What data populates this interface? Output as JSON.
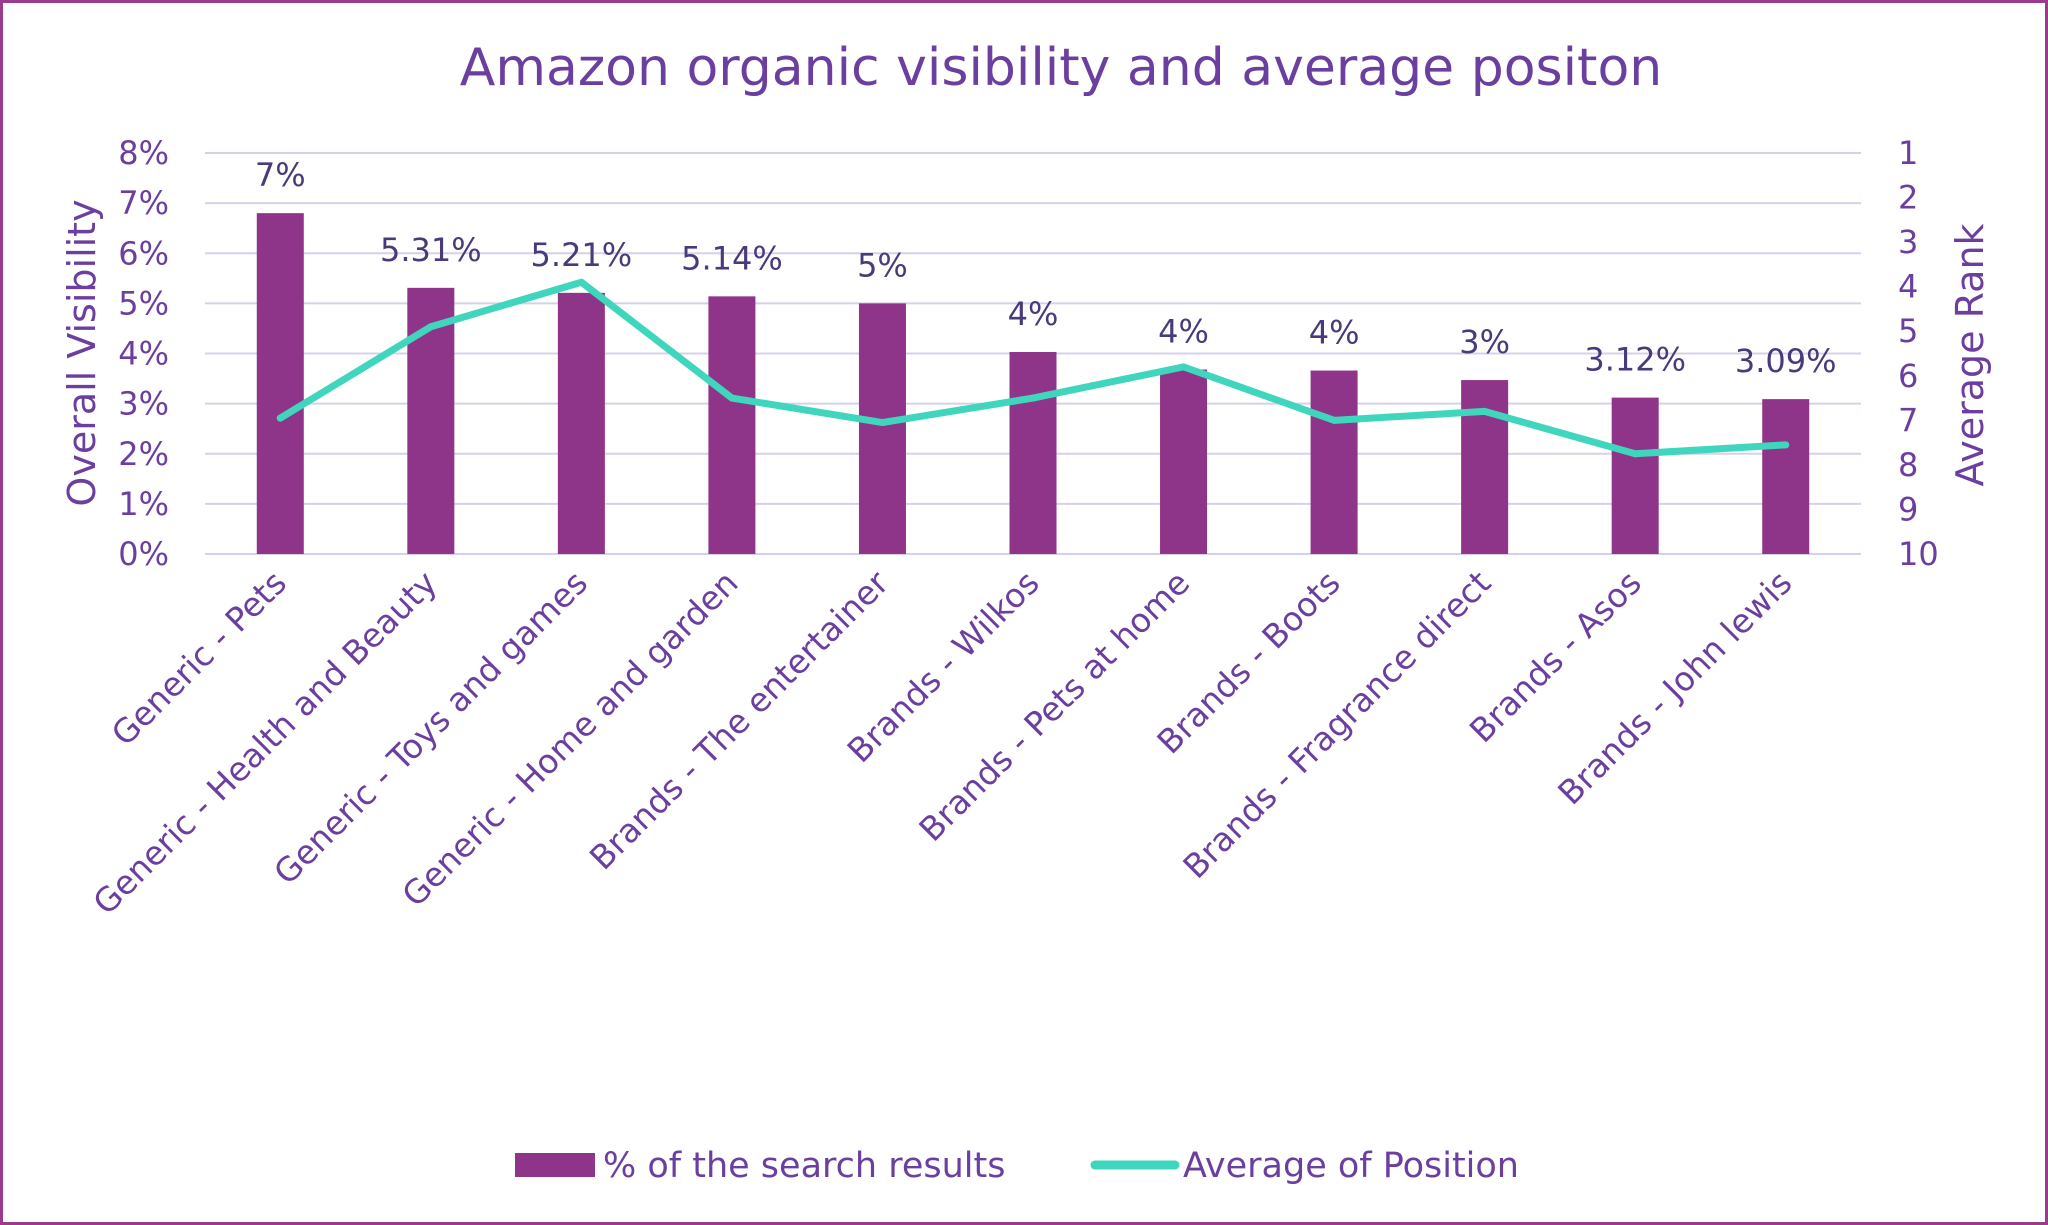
{
  "chart_data": {
    "type": "bar",
    "title": "Amazon organic visibility and average positon",
    "ylabel": "Overall Visibility",
    "y2label": "Average Rank",
    "ylim": [
      0,
      8
    ],
    "y2lim": [
      1,
      10
    ],
    "y2_inverted": true,
    "y_ticks": [
      "0%",
      "1%",
      "2%",
      "3%",
      "4%",
      "5%",
      "6%",
      "7%",
      "8%"
    ],
    "y2_ticks": [
      "1",
      "2",
      "3",
      "4",
      "5",
      "6",
      "7",
      "8",
      "9",
      "10"
    ],
    "grid": true,
    "legend_position": "bottom",
    "categories": [
      "Generic - Pets",
      "Generic - Health and Beauty",
      "Generic - Toys and games",
      "Generic - Home and garden",
      "Brands - The entertainer",
      "Brands - Wilkos",
      "Brands - Pets at home",
      "Brands - Boots",
      "Brands - Fragrance direct",
      "Brands - Asos",
      "Brands - John lewis"
    ],
    "series": [
      {
        "name": "% of the search results",
        "type": "bar",
        "axis": "left",
        "color": "#8e3589",
        "values": [
          6.8,
          5.31,
          5.21,
          5.14,
          5.0,
          4.03,
          3.68,
          3.66,
          3.47,
          3.12,
          3.09
        ],
        "labels": [
          "7%",
          "5.31%",
          "5.21%",
          "5.14%",
          "5%",
          "4%",
          "4%",
          "4%",
          "3%",
          "3.12%",
          "3.09%"
        ]
      },
      {
        "name": "Average of Position",
        "type": "line",
        "axis": "right",
        "color": "#3fd6bd",
        "values": [
          6.95,
          4.9,
          3.9,
          6.5,
          7.05,
          6.5,
          5.8,
          7.0,
          6.8,
          7.75,
          7.55
        ]
      }
    ]
  }
}
